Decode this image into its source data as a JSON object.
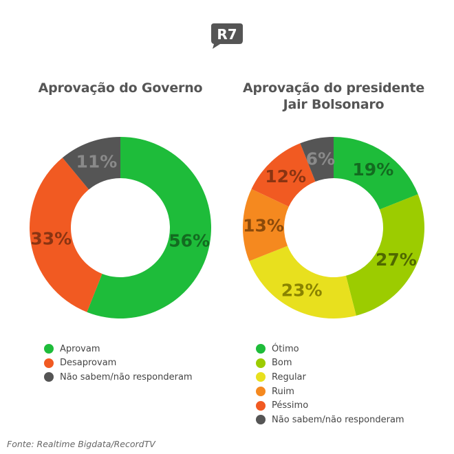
{
  "logo": {
    "text": "R7",
    "color": "#555555"
  },
  "chart_data": [
    {
      "type": "pie",
      "title": "Aprovação do Governo",
      "slices": [
        {
          "label": "Aprovam",
          "value": 56,
          "display": "56%",
          "color": "#1ebc3a",
          "label_color": "#136b20"
        },
        {
          "label": "Desaprovam",
          "value": 33,
          "display": "33%",
          "color": "#f15a22",
          "label_color": "#8a3412"
        },
        {
          "label": "Não sabem/não responderam",
          "value": 11,
          "display": "11%",
          "color": "#555555",
          "label_color": "#8a8a8a"
        }
      ]
    },
    {
      "type": "pie",
      "title_lines": [
        "Aprovação do presidente",
        "Jair Bolsonaro"
      ],
      "slices": [
        {
          "label": "Ótimo",
          "value": 19,
          "display": "19%",
          "color": "#1ebc3a",
          "label_color": "#136b20"
        },
        {
          "label": "Bom",
          "value": 27,
          "display": "27%",
          "color": "#9ccc00",
          "label_color": "#4f6800"
        },
        {
          "label": "Regular",
          "value": 23,
          "display": "23%",
          "color": "#e8e01e",
          "label_color": "#8a8400"
        },
        {
          "label": "Ruim",
          "value": 13,
          "display": "13%",
          "color": "#f5891f",
          "label_color": "#8b4a0a"
        },
        {
          "label": "Péssimo",
          "value": 12,
          "display": "12%",
          "color": "#f15a22",
          "label_color": "#8a3412"
        },
        {
          "label": "Não sabem/não responderam",
          "value": 6,
          "display": "6%",
          "color": "#555555",
          "label_color": "#8a8a8a"
        }
      ]
    }
  ],
  "source": "Fonte: Realtime Bigdata/RecordTV"
}
